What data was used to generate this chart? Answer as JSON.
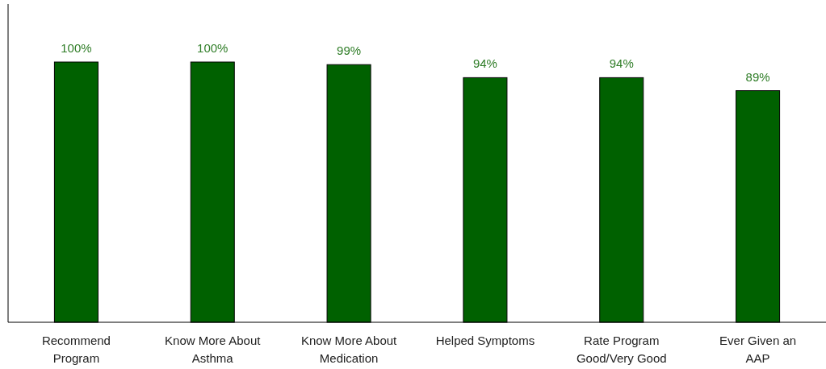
{
  "chart_data": {
    "type": "bar",
    "categories": [
      "Recommend Program",
      "Know More About Asthma",
      "Know More About Medication",
      "Helped Symptoms",
      "Rate Program Good/Very Good",
      "Ever Given an AAP"
    ],
    "values": [
      100,
      100,
      99,
      94,
      94,
      89
    ],
    "value_labels": [
      "100%",
      "100%",
      "99%",
      "94%",
      "94%",
      "89%"
    ],
    "color": "#006100",
    "relative": false
  }
}
